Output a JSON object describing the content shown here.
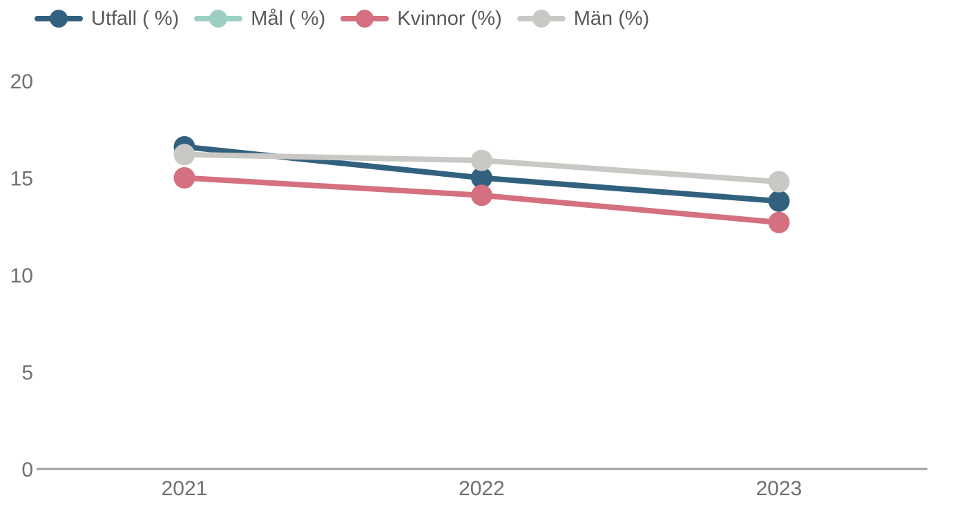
{
  "chart_data": {
    "type": "line",
    "categories": [
      "2021",
      "2022",
      "2023"
    ],
    "series": [
      {
        "name": "Utfall ( %)",
        "color": "#31617f",
        "values": [
          16.6,
          15.0,
          13.8
        ]
      },
      {
        "name": "Mål ( %)",
        "color": "#9bcfc3",
        "values": [
          null,
          null,
          null
        ]
      },
      {
        "name": "Kvinnor (%)",
        "color": "#d4707f",
        "values": [
          15.0,
          14.1,
          12.7
        ]
      },
      {
        "name": "Män (%)",
        "color": "#c9c8c4",
        "values": [
          16.2,
          15.9,
          14.8
        ]
      }
    ],
    "title": "",
    "xlabel": "",
    "ylabel": "",
    "y_ticks": [
      0,
      5,
      10,
      15,
      20
    ],
    "ylim": [
      0,
      21.3
    ],
    "grid": false,
    "legend_position": "top-left",
    "axis_color": "#9e9e9e",
    "tick_label_color": "#6f6f6f",
    "legend_text_color": "#58595b"
  }
}
